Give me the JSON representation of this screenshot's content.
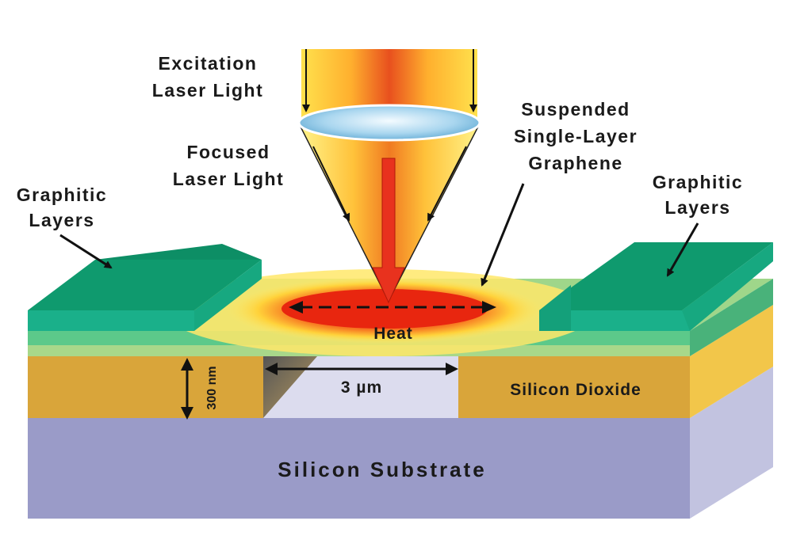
{
  "labels": {
    "excitation_line1": "Excitation",
    "excitation_line2": "Laser Light",
    "focused_line1": "Focused",
    "focused_line2": "Laser Light",
    "suspended_line1": "Suspended",
    "suspended_line2": "Single-Layer",
    "suspended_line3": "Graphene",
    "graphitic_left_line1": "Graphitic",
    "graphitic_left_line2": "Layers",
    "graphitic_right_line1": "Graphitic",
    "graphitic_right_line2": "Layers",
    "heat": "Heat",
    "thickness": "300 nm",
    "gap": "3 µm",
    "silicon_dioxide": "Silicon Dioxide",
    "silicon_substrate": "Silicon Substrate"
  },
  "colors": {
    "substrate_front": "#9a9bc8",
    "substrate_side": "#c2c3e0",
    "oxide": "#d9a53a",
    "graphite_top": "#0f9a6e",
    "graphite_front": "#1ab08a",
    "graphene": "#a8d88a",
    "laser_red": "#e8321e",
    "laser_yellow": "#ffe14d"
  }
}
